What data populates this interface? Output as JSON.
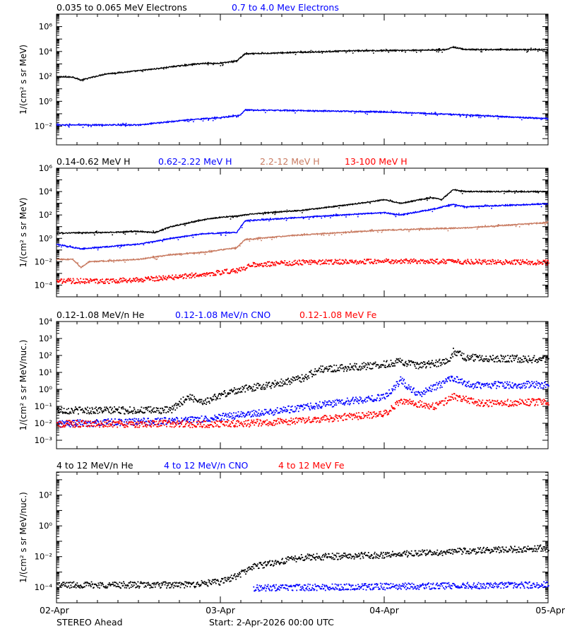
{
  "footer": {
    "spacecraft": "STEREO Ahead",
    "start": "Start:  2-Apr-2026 00:00 UTC"
  },
  "x_ticks": [
    "02-Apr",
    "03-Apr",
    "04-Apr",
    "05-Apr"
  ],
  "chart_data": [
    {
      "type": "scatter",
      "ylabel": "1/(cm² s sr MeV)",
      "yscale": "log",
      "ylim_exp": [
        -3.5,
        7
      ],
      "ytick_exp": [
        -2,
        0,
        2,
        4,
        6
      ],
      "x_unit": "days since 02-Apr-2026 00:00 UTC",
      "xlim": [
        0,
        3
      ],
      "legend": [
        {
          "label": "0.035 to 0.065 MeV Electrons",
          "color": "#000000"
        },
        {
          "label": "0.7 to 4.0 Mev Electrons",
          "color": "#0000ff"
        }
      ],
      "series": [
        {
          "name": "0.035 to 0.065 MeV Electrons",
          "color": "#000000",
          "style": "line",
          "points": [
            [
              0.0,
              1.95
            ],
            [
              0.1,
              1.95
            ],
            [
              0.15,
              1.7
            ],
            [
              0.3,
              2.2
            ],
            [
              0.5,
              2.45
            ],
            [
              0.6,
              2.6
            ],
            [
              0.72,
              2.8
            ],
            [
              0.9,
              3.05
            ],
            [
              1.0,
              3.05
            ],
            [
              1.1,
              3.25
            ],
            [
              1.15,
              3.8
            ],
            [
              1.4,
              3.9
            ],
            [
              1.8,
              4.05
            ],
            [
              2.2,
              4.1
            ],
            [
              2.38,
              4.15
            ],
            [
              2.42,
              4.35
            ],
            [
              2.5,
              4.15
            ],
            [
              3.0,
              4.15
            ]
          ]
        },
        {
          "name": "0.7 to 4.0 Mev Electrons",
          "color": "#0000ff",
          "style": "line",
          "points": [
            [
              0.0,
              -1.9
            ],
            [
              0.5,
              -1.9
            ],
            [
              0.8,
              -1.5
            ],
            [
              1.0,
              -1.3
            ],
            [
              1.12,
              -1.15
            ],
            [
              1.15,
              -0.7
            ],
            [
              1.5,
              -0.75
            ],
            [
              2.0,
              -0.85
            ],
            [
              2.5,
              -1.1
            ],
            [
              3.0,
              -1.4
            ]
          ]
        }
      ]
    },
    {
      "type": "scatter",
      "ylabel": "1/(cm² s sr MeV)",
      "yscale": "log",
      "ylim_exp": [
        -5,
        6
      ],
      "ytick_exp": [
        -4,
        -2,
        0,
        2,
        4,
        6
      ],
      "x_unit": "days since 02-Apr-2026 00:00 UTC",
      "xlim": [
        0,
        3
      ],
      "legend": [
        {
          "label": "0.14-0.62 MeV H",
          "color": "#000000"
        },
        {
          "label": "0.62-2.22 MeV H",
          "color": "#0000ff"
        },
        {
          "label": "2.2-12 MeV H",
          "color": "#c87a60"
        },
        {
          "label": "13-100 MeV H",
          "color": "#ff0000"
        }
      ],
      "series": [
        {
          "name": "0.14-0.62 MeV H",
          "color": "#000000",
          "style": "line",
          "points": [
            [
              0.0,
              0.45
            ],
            [
              0.3,
              0.5
            ],
            [
              0.5,
              0.6
            ],
            [
              0.6,
              0.5
            ],
            [
              0.7,
              1.0
            ],
            [
              0.8,
              1.3
            ],
            [
              0.9,
              1.6
            ],
            [
              1.0,
              1.8
            ],
            [
              1.1,
              1.9
            ],
            [
              1.2,
              2.1
            ],
            [
              1.5,
              2.4
            ],
            [
              1.8,
              2.9
            ],
            [
              2.0,
              3.3
            ],
            [
              2.1,
              3.0
            ],
            [
              2.3,
              3.5
            ],
            [
              2.35,
              3.3
            ],
            [
              2.42,
              4.15
            ],
            [
              2.5,
              4.0
            ],
            [
              3.0,
              4.0
            ]
          ]
        },
        {
          "name": "0.62-2.22 MeV H",
          "color": "#0000ff",
          "style": "line",
          "points": [
            [
              0.0,
              -0.5
            ],
            [
              0.15,
              -0.9
            ],
            [
              0.5,
              -0.5
            ],
            [
              0.7,
              0.0
            ],
            [
              0.9,
              0.4
            ],
            [
              1.1,
              0.5
            ],
            [
              1.15,
              1.5
            ],
            [
              1.5,
              1.8
            ],
            [
              2.0,
              2.2
            ],
            [
              2.1,
              2.0
            ],
            [
              2.3,
              2.5
            ],
            [
              2.42,
              2.9
            ],
            [
              2.5,
              2.7
            ],
            [
              3.0,
              2.95
            ]
          ]
        },
        {
          "name": "2.2-12 MeV H",
          "color": "#c87a60",
          "style": "line",
          "points": [
            [
              0.0,
              -1.8
            ],
            [
              0.1,
              -1.8
            ],
            [
              0.15,
              -2.5
            ],
            [
              0.2,
              -2.0
            ],
            [
              0.5,
              -1.8
            ],
            [
              0.7,
              -1.4
            ],
            [
              0.9,
              -1.2
            ],
            [
              1.1,
              -0.8
            ],
            [
              1.15,
              -0.1
            ],
            [
              1.5,
              0.3
            ],
            [
              2.0,
              0.7
            ],
            [
              2.5,
              0.9
            ],
            [
              3.0,
              1.35
            ]
          ]
        },
        {
          "name": "13-100 MeV H",
          "color": "#ff0000",
          "style": "dots",
          "points": [
            [
              0.0,
              -3.6
            ],
            [
              0.3,
              -3.6
            ],
            [
              0.5,
              -3.5
            ],
            [
              0.7,
              -3.3
            ],
            [
              0.9,
              -3.0
            ],
            [
              1.1,
              -2.7
            ],
            [
              1.2,
              -2.2
            ],
            [
              1.5,
              -2.0
            ],
            [
              2.0,
              -1.9
            ],
            [
              3.0,
              -2.0
            ]
          ]
        }
      ]
    },
    {
      "type": "scatter",
      "ylabel": "1/(cm² s sr MeV/nuc.)",
      "yscale": "log",
      "ylim_exp": [
        -3.5,
        4
      ],
      "ytick_exp": [
        -3,
        -2,
        -1,
        0,
        1,
        2,
        3,
        4
      ],
      "ytick_labels": [
        "10⁻³",
        "10⁻²",
        "10⁻¹",
        "10⁰",
        "10¹",
        "10²",
        "10³",
        "10⁴"
      ],
      "x_unit": "days since 02-Apr-2026 00:00 UTC",
      "xlim": [
        0,
        3
      ],
      "legend": [
        {
          "label": "0.12-1.08 MeV/n He",
          "color": "#000000"
        },
        {
          "label": "0.12-1.08 MeV/n CNO",
          "color": "#0000ff"
        },
        {
          "label": "0.12-1.08 MeV Fe",
          "color": "#ff0000"
        }
      ],
      "series": [
        {
          "name": "0.12-1.08 MeV/n He",
          "color": "#000000",
          "style": "dots",
          "points": [
            [
              0.0,
              -1.2
            ],
            [
              0.7,
              -1.2
            ],
            [
              0.72,
              -1.0
            ],
            [
              0.8,
              -0.4
            ],
            [
              0.9,
              -0.7
            ],
            [
              1.0,
              -0.3
            ],
            [
              1.1,
              0.0
            ],
            [
              1.3,
              0.3
            ],
            [
              1.5,
              0.7
            ],
            [
              1.6,
              1.2
            ],
            [
              2.0,
              1.5
            ],
            [
              2.1,
              1.7
            ],
            [
              2.2,
              1.4
            ],
            [
              2.4,
              1.7
            ],
            [
              2.42,
              2.3
            ],
            [
              2.5,
              1.9
            ],
            [
              3.0,
              1.8
            ]
          ]
        },
        {
          "name": "0.12-1.08 MeV/n CNO",
          "color": "#0000ff",
          "style": "dots",
          "points": [
            [
              0.0,
              -2.0
            ],
            [
              0.8,
              -1.8
            ],
            [
              1.0,
              -1.6
            ],
            [
              1.3,
              -1.3
            ],
            [
              1.6,
              -0.9
            ],
            [
              2.0,
              -0.4
            ],
            [
              2.1,
              0.6
            ],
            [
              2.2,
              -0.3
            ],
            [
              2.42,
              0.7
            ],
            [
              2.5,
              0.3
            ],
            [
              3.0,
              0.3
            ]
          ]
        },
        {
          "name": "0.12-1.08 MeV Fe",
          "color": "#ff0000",
          "style": "dots",
          "points": [
            [
              0.0,
              -2.0
            ],
            [
              1.1,
              -2.0
            ],
            [
              1.5,
              -1.8
            ],
            [
              2.0,
              -1.4
            ],
            [
              2.1,
              -0.6
            ],
            [
              2.3,
              -1.0
            ],
            [
              2.42,
              -0.4
            ],
            [
              2.6,
              -0.8
            ],
            [
              3.0,
              -0.7
            ]
          ]
        }
      ]
    },
    {
      "type": "scatter",
      "ylabel": "1/(cm² s sr MeV/nuc.)",
      "yscale": "log",
      "ylim_exp": [
        -5,
        3.5
      ],
      "ytick_exp": [
        -4,
        -2,
        0,
        2
      ],
      "x_unit": "days since 02-Apr-2026 00:00 UTC",
      "xlim": [
        0,
        3
      ],
      "legend": [
        {
          "label": "4 to 12 MeV/n He",
          "color": "#000000"
        },
        {
          "label": "4 to 12 MeV/n CNO",
          "color": "#0000ff"
        },
        {
          "label": "4 to 12 MeV Fe",
          "color": "#ff0000"
        }
      ],
      "series": [
        {
          "name": "4 to 12 MeV/n He",
          "color": "#000000",
          "style": "dots",
          "points": [
            [
              0.0,
              -3.8
            ],
            [
              0.8,
              -3.8
            ],
            [
              1.0,
              -3.6
            ],
            [
              1.1,
              -3.2
            ],
            [
              1.2,
              -2.6
            ],
            [
              1.5,
              -2.0
            ],
            [
              2.0,
              -1.85
            ],
            [
              2.5,
              -1.6
            ],
            [
              3.0,
              -1.4
            ]
          ]
        },
        {
          "name": "4 to 12 MeV/n CNO",
          "color": "#0000ff",
          "style": "dots",
          "points": [
            [
              1.2,
              -4.0
            ],
            [
              2.0,
              -3.9
            ],
            [
              3.0,
              -3.8
            ]
          ]
        },
        {
          "name": "4 to 12 MeV Fe",
          "color": "#ff0000",
          "style": "dots",
          "points": []
        }
      ]
    }
  ]
}
